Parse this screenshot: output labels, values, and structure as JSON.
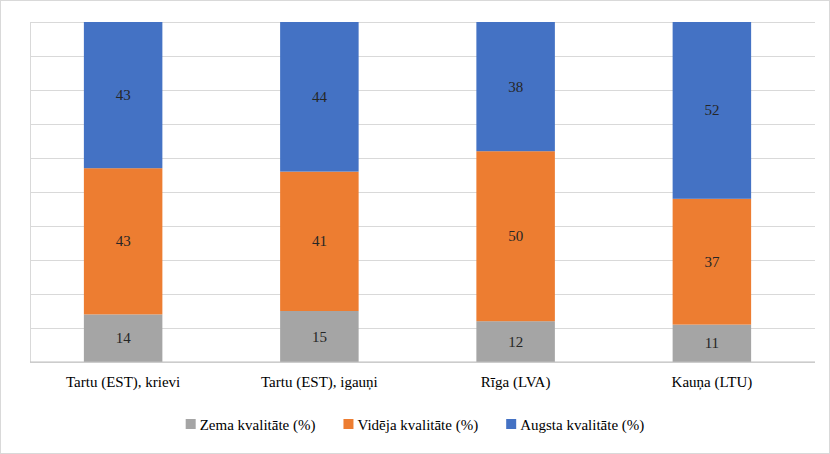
{
  "chart_data": {
    "type": "bar",
    "stacked": true,
    "data_labels": true,
    "grid": true,
    "tick_labels": "x",
    "legend": "bottom",
    "categories": [
      "Tartu (EST), krievi",
      "Tartu (EST), igauņi",
      "Rīga (LVA)",
      "Kauņa (LTU)"
    ],
    "series": [
      {
        "name": "Zema kvalitāte (%)",
        "color": "#a5a5a5",
        "values": [
          14,
          15,
          12,
          11
        ]
      },
      {
        "name": "Vidēja kvalitāte (%)",
        "color": "#ed7d31",
        "values": [
          43,
          41,
          50,
          37
        ]
      },
      {
        "name": "Augsta kvalitāte (%)",
        "color": "#4472c4",
        "values": [
          43,
          44,
          38,
          52
        ]
      }
    ],
    "ylim": [
      0,
      100
    ],
    "yticks": [
      0,
      10,
      20,
      30,
      40,
      50,
      60,
      70,
      80,
      90,
      100
    ]
  }
}
